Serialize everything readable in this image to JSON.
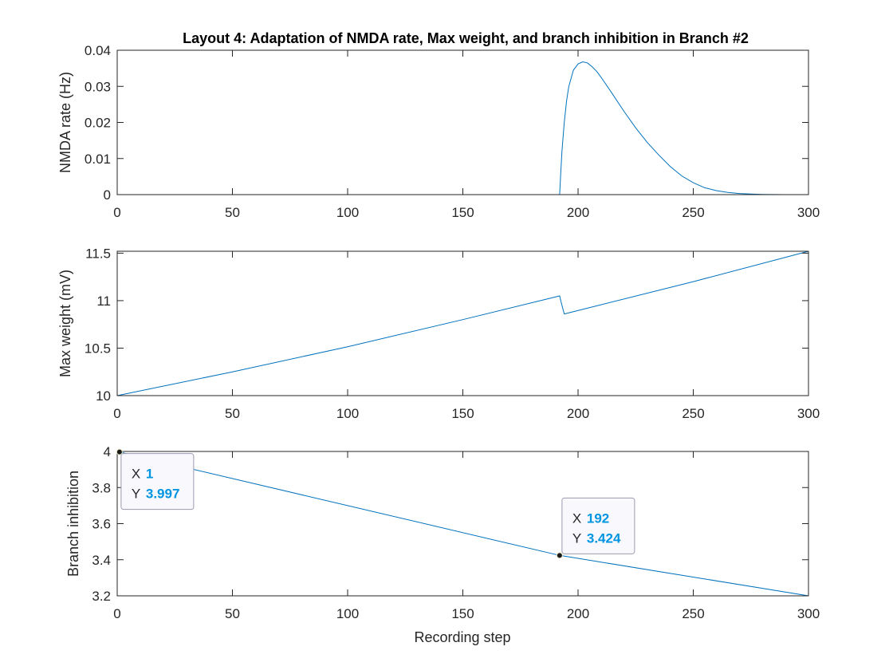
{
  "figure": {
    "title": "Layout 4: Adaptation of NMDA rate, Max weight, and branch inhibition in Branch #2",
    "xlabel": "Recording step"
  },
  "colors": {
    "series": "#0072BD",
    "datatip_value": "#0095E0",
    "axis": "#262626"
  },
  "chart_data": [
    {
      "type": "line",
      "title": "Layout 4: Adaptation of NMDA rate, Max weight, and branch inhibition in Branch #2",
      "xlabel": "",
      "ylabel": "NMDA rate (Hz)",
      "xlim": [
        0,
        300
      ],
      "ylim": [
        0,
        0.04
      ],
      "xticks": [
        0,
        50,
        100,
        150,
        200,
        250,
        300
      ],
      "yticks": [
        0,
        0.01,
        0.02,
        0.03,
        0.04
      ],
      "ytick_labels": [
        "0",
        "0.01",
        "0.02",
        "0.03",
        "0.04"
      ],
      "grid": false,
      "series": [
        {
          "x": [
            0,
            192,
            192.5,
            193,
            194,
            195,
            196,
            198,
            200,
            202,
            204,
            206,
            208,
            210,
            215,
            220,
            225,
            230,
            235,
            240,
            245,
            250,
            255,
            260,
            265,
            270,
            275,
            280,
            285,
            290,
            295,
            300
          ],
          "y": [
            0,
            0,
            0.006,
            0.012,
            0.02,
            0.026,
            0.03,
            0.0345,
            0.0362,
            0.0368,
            0.0365,
            0.0355,
            0.0342,
            0.0325,
            0.0278,
            0.023,
            0.0185,
            0.0145,
            0.011,
            0.0078,
            0.0052,
            0.0033,
            0.0019,
            0.0011,
            0.0006,
            0.0003,
            0.00015,
            7e-05,
            3e-05,
            1e-05,
            0,
            0
          ]
        }
      ]
    },
    {
      "type": "line",
      "xlabel": "",
      "ylabel": "Max weight (mV)",
      "xlim": [
        0,
        300
      ],
      "ylim": [
        10,
        11.52
      ],
      "xticks": [
        0,
        50,
        100,
        150,
        200,
        250,
        300
      ],
      "yticks": [
        10,
        10.5,
        11,
        11.5
      ],
      "ytick_labels": [
        "10",
        "10.5",
        "11",
        "11.5"
      ],
      "grid": false,
      "series": [
        {
          "x": [
            0,
            50,
            100,
            150,
            192,
            193,
            194,
            250,
            300
          ],
          "y": [
            10.0,
            10.25,
            10.515,
            10.8,
            11.05,
            10.95,
            10.86,
            11.2,
            11.52
          ]
        }
      ]
    },
    {
      "type": "line",
      "xlabel": "Recording step",
      "ylabel": "Branch inhibition",
      "xlim": [
        0,
        300
      ],
      "ylim": [
        3.2,
        4.0
      ],
      "xticks": [
        0,
        50,
        100,
        150,
        200,
        250,
        300
      ],
      "yticks": [
        3.2,
        3.4,
        3.6,
        3.8,
        4.0
      ],
      "ytick_labels": [
        "3.2",
        "3.4",
        "3.6",
        "3.8",
        "4"
      ],
      "grid": false,
      "series": [
        {
          "x": [
            0,
            1,
            192,
            300
          ],
          "y": [
            4.0,
            3.997,
            3.424,
            3.2
          ]
        }
      ],
      "datatips": [
        {
          "x": 1,
          "y": 3.997,
          "x_label": "1",
          "y_label": "3.997"
        },
        {
          "x": 192,
          "y": 3.424,
          "x_label": "192",
          "y_label": "3.424"
        }
      ]
    }
  ]
}
